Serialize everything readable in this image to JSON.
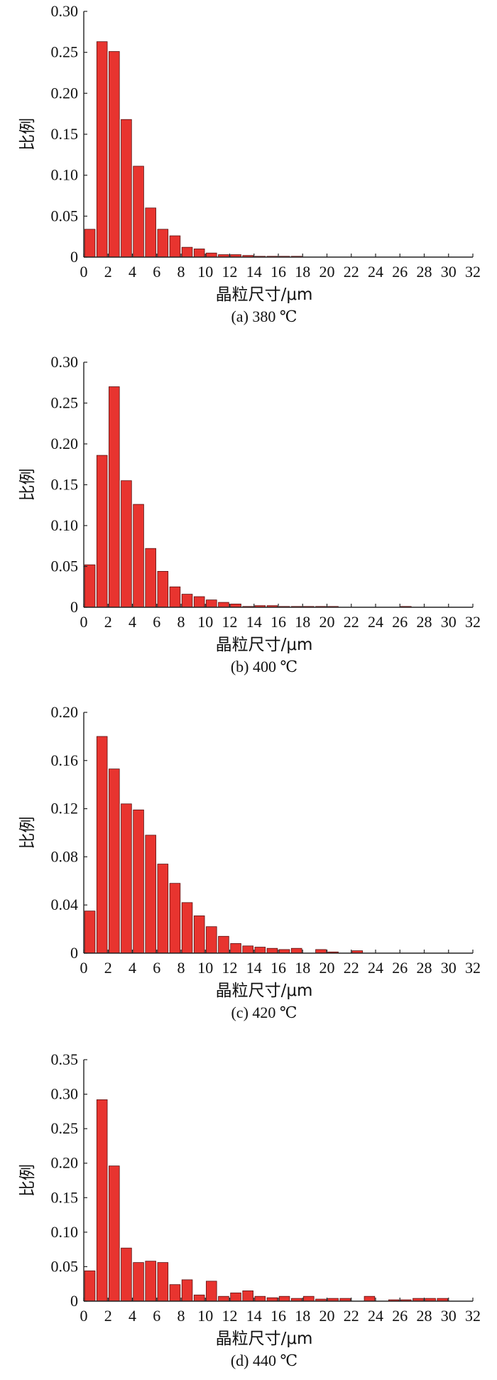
{
  "figure": {
    "bar_color": "#e8342f",
    "bar_edge_color": "#5a1010"
  },
  "chart_data": [
    {
      "type": "bar",
      "caption": "(a) 380 ℃",
      "xlabel": "晶粒尺寸/μm",
      "ylabel": "比例",
      "xlim": [
        0,
        32
      ],
      "ylim": [
        0,
        0.3
      ],
      "xticks": [
        0,
        2,
        4,
        6,
        8,
        10,
        12,
        14,
        16,
        18,
        20,
        22,
        24,
        26,
        28,
        30,
        32
      ],
      "yticks": [
        0,
        0.05,
        0.1,
        0.15,
        0.2,
        0.25,
        0.3
      ],
      "ytick_labels": [
        "0",
        "0.05",
        "0.10",
        "0.15",
        "0.20",
        "0.25",
        "0.30"
      ],
      "x": [
        0.5,
        1.5,
        2.5,
        3.5,
        4.5,
        5.5,
        6.5,
        7.5,
        8.5,
        9.5,
        10.5,
        11.5,
        12.5,
        13.5,
        14.5,
        15.5,
        16.5,
        17.5
      ],
      "values": [
        0.034,
        0.263,
        0.251,
        0.168,
        0.111,
        0.06,
        0.034,
        0.026,
        0.012,
        0.01,
        0.005,
        0.003,
        0.003,
        0.002,
        0.001,
        0.001,
        0.001,
        0.001
      ],
      "grid": false
    },
    {
      "type": "bar",
      "caption": "(b) 400 ℃",
      "xlabel": "晶粒尺寸/μm",
      "ylabel": "比例",
      "xlim": [
        0,
        32
      ],
      "ylim": [
        0,
        0.3
      ],
      "xticks": [
        0,
        2,
        4,
        6,
        8,
        10,
        12,
        14,
        16,
        18,
        20,
        22,
        24,
        26,
        28,
        30,
        32
      ],
      "yticks": [
        0,
        0.05,
        0.1,
        0.15,
        0.2,
        0.25,
        0.3
      ],
      "ytick_labels": [
        "0",
        "0.05",
        "0.10",
        "0.15",
        "0.20",
        "0.25",
        "0.30"
      ],
      "x": [
        0.5,
        1.5,
        2.5,
        3.5,
        4.5,
        5.5,
        6.5,
        7.5,
        8.5,
        9.5,
        10.5,
        11.5,
        12.5,
        13.5,
        14.5,
        15.5,
        16.5,
        17.5,
        18.5,
        19.5,
        20.5,
        26.5
      ],
      "values": [
        0.052,
        0.186,
        0.27,
        0.155,
        0.126,
        0.072,
        0.044,
        0.025,
        0.016,
        0.013,
        0.009,
        0.006,
        0.004,
        0.001,
        0.002,
        0.002,
        0.001,
        0.001,
        0.001,
        0.001,
        0.001,
        0.001
      ],
      "grid": false
    },
    {
      "type": "bar",
      "caption": "(c) 420 ℃",
      "xlabel": "晶粒尺寸/μm",
      "ylabel": "比例",
      "xlim": [
        0,
        32
      ],
      "ylim": [
        0,
        0.2
      ],
      "xticks": [
        0,
        2,
        4,
        6,
        8,
        10,
        12,
        14,
        16,
        18,
        20,
        22,
        24,
        26,
        28,
        30,
        32
      ],
      "yticks": [
        0,
        0.04,
        0.08,
        0.12,
        0.16,
        0.2
      ],
      "ytick_labels": [
        "0",
        "0.04",
        "0.08",
        "0.12",
        "0.16",
        "0.20"
      ],
      "x": [
        0.5,
        1.5,
        2.5,
        3.5,
        4.5,
        5.5,
        6.5,
        7.5,
        8.5,
        9.5,
        10.5,
        11.5,
        12.5,
        13.5,
        14.5,
        15.5,
        16.5,
        17.5,
        19.5,
        20.5,
        22.5
      ],
      "values": [
        0.035,
        0.18,
        0.153,
        0.124,
        0.119,
        0.098,
        0.074,
        0.058,
        0.042,
        0.031,
        0.022,
        0.014,
        0.008,
        0.006,
        0.005,
        0.004,
        0.003,
        0.004,
        0.003,
        0.001,
        0.002
      ],
      "grid": false
    },
    {
      "type": "bar",
      "caption": "(d) 440 ℃",
      "xlabel": "晶粒尺寸/μm",
      "ylabel": "比例",
      "xlim": [
        0,
        32
      ],
      "ylim": [
        0,
        0.35
      ],
      "xticks": [
        0,
        2,
        4,
        6,
        8,
        10,
        12,
        14,
        16,
        18,
        20,
        22,
        24,
        26,
        28,
        30,
        32
      ],
      "yticks": [
        0,
        0.05,
        0.1,
        0.15,
        0.2,
        0.25,
        0.3,
        0.35
      ],
      "ytick_labels": [
        "0",
        "0.05",
        "0.10",
        "0.15",
        "0.20",
        "0.25",
        "0.30",
        "0.35"
      ],
      "x": [
        0.5,
        1.5,
        2.5,
        3.5,
        4.5,
        5.5,
        6.5,
        7.5,
        8.5,
        9.5,
        10.5,
        11.5,
        12.5,
        13.5,
        14.5,
        15.5,
        16.5,
        17.5,
        18.5,
        19.5,
        20.5,
        21.5,
        23.5,
        25.5,
        26.5,
        27.5,
        28.5,
        29.5
      ],
      "values": [
        0.044,
        0.292,
        0.196,
        0.077,
        0.056,
        0.058,
        0.056,
        0.024,
        0.031,
        0.009,
        0.029,
        0.007,
        0.012,
        0.015,
        0.007,
        0.005,
        0.007,
        0.004,
        0.007,
        0.003,
        0.004,
        0.004,
        0.007,
        0.002,
        0.002,
        0.004,
        0.004,
        0.004
      ],
      "grid": false
    }
  ]
}
